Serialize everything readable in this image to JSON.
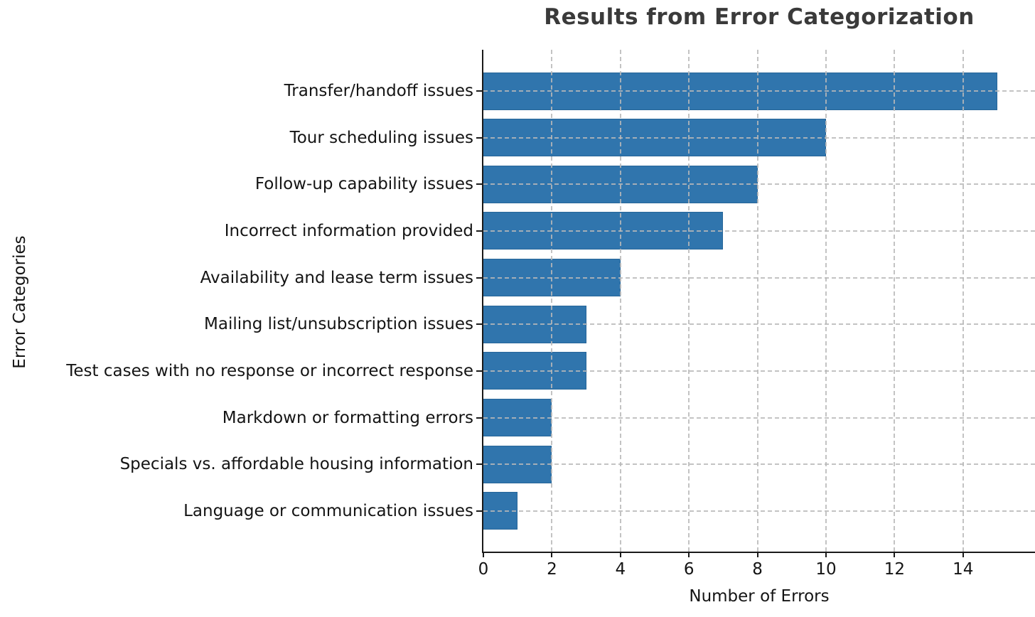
{
  "chart_data": {
    "type": "bar",
    "orientation": "horizontal",
    "title": "Results from Error Categorization",
    "xlabel": "Number of Errors",
    "ylabel": "Error Categories",
    "categories": [
      "Transfer/handoff issues",
      "Tour scheduling issues",
      "Follow-up capability issues",
      "Incorrect information provided",
      "Availability and lease term issues",
      "Mailing list/unsubscription issues",
      "Test cases with no response or incorrect response",
      "Markdown or formatting errors",
      "Specials vs. affordable housing information",
      "Language or communication issues"
    ],
    "values": [
      15,
      10,
      8,
      7,
      4,
      3,
      3,
      2,
      2,
      1
    ],
    "xlim": [
      0,
      16
    ],
    "xticks": [
      0,
      2,
      4,
      6,
      8,
      10,
      12,
      14
    ],
    "grid": {
      "style": "dashed",
      "which": "both",
      "color": "#b9b9b9"
    },
    "legend": "none",
    "bar_color": "#3075ad",
    "bar_edge_color": "#276699",
    "title_color": "#3a3a3a",
    "text_color": "#141414"
  }
}
